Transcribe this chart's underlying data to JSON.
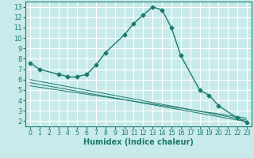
{
  "xlabel": "Humidex (Indice chaleur)",
  "xlim": [
    -0.5,
    23.5
  ],
  "ylim": [
    1.5,
    13.5
  ],
  "xticks": [
    0,
    1,
    2,
    3,
    4,
    5,
    6,
    7,
    8,
    9,
    10,
    11,
    12,
    13,
    14,
    15,
    16,
    17,
    18,
    19,
    20,
    21,
    22,
    23
  ],
  "yticks": [
    2,
    3,
    4,
    5,
    6,
    7,
    8,
    9,
    10,
    11,
    12,
    13
  ],
  "bg_color": "#c8eaea",
  "grid_color": "#ffffff",
  "line_color": "#1a7a6e",
  "segments": [
    {
      "x": [
        0,
        1
      ],
      "y": [
        7.6,
        7.0
      ]
    },
    {
      "x": [
        1,
        3
      ],
      "y": [
        7.0,
        6.5
      ]
    },
    {
      "x": [
        3,
        4
      ],
      "y": [
        6.5,
        6.3
      ]
    },
    {
      "x": [
        4,
        5
      ],
      "y": [
        6.3,
        6.3
      ]
    },
    {
      "x": [
        5,
        6
      ],
      "y": [
        6.3,
        6.5
      ]
    },
    {
      "x": [
        6,
        7
      ],
      "y": [
        6.5,
        7.4
      ]
    },
    {
      "x": [
        7,
        8
      ],
      "y": [
        7.4,
        8.6
      ]
    },
    {
      "x": [
        8,
        10
      ],
      "y": [
        8.6,
        10.3
      ]
    },
    {
      "x": [
        10,
        11
      ],
      "y": [
        10.3,
        11.4
      ]
    },
    {
      "x": [
        11,
        12
      ],
      "y": [
        11.4,
        12.2
      ]
    },
    {
      "x": [
        12,
        13
      ],
      "y": [
        12.2,
        13.0
      ]
    },
    {
      "x": [
        13,
        14
      ],
      "y": [
        13.0,
        12.7
      ]
    },
    {
      "x": [
        14,
        15
      ],
      "y": [
        12.7,
        11.0
      ]
    },
    {
      "x": [
        15,
        16
      ],
      "y": [
        11.0,
        8.3
      ]
    },
    {
      "x": [
        16,
        18
      ],
      "y": [
        8.3,
        5.0
      ]
    },
    {
      "x": [
        18,
        19
      ],
      "y": [
        5.0,
        4.5
      ]
    },
    {
      "x": [
        19,
        20
      ],
      "y": [
        4.5,
        3.5
      ]
    },
    {
      "x": [
        20,
        22
      ],
      "y": [
        3.5,
        2.3
      ]
    },
    {
      "x": [
        22,
        23
      ],
      "y": [
        2.3,
        1.9
      ]
    }
  ],
  "marker_x": [
    0,
    1,
    3,
    4,
    5,
    6,
    7,
    8,
    10,
    11,
    12,
    13,
    14,
    15,
    16,
    18,
    19,
    20,
    22,
    23
  ],
  "marker_y": [
    7.6,
    7.0,
    6.5,
    6.3,
    6.3,
    6.5,
    7.4,
    8.6,
    10.3,
    11.4,
    12.2,
    13.0,
    12.7,
    11.0,
    8.3,
    5.0,
    4.5,
    3.5,
    2.3,
    1.9
  ],
  "flat_lines": [
    {
      "x": [
        0,
        23
      ],
      "y": [
        6.0,
        2.1
      ]
    },
    {
      "x": [
        0,
        23
      ],
      "y": [
        5.7,
        1.95
      ]
    },
    {
      "x": [
        0,
        23
      ],
      "y": [
        5.4,
        2.3
      ]
    }
  ]
}
